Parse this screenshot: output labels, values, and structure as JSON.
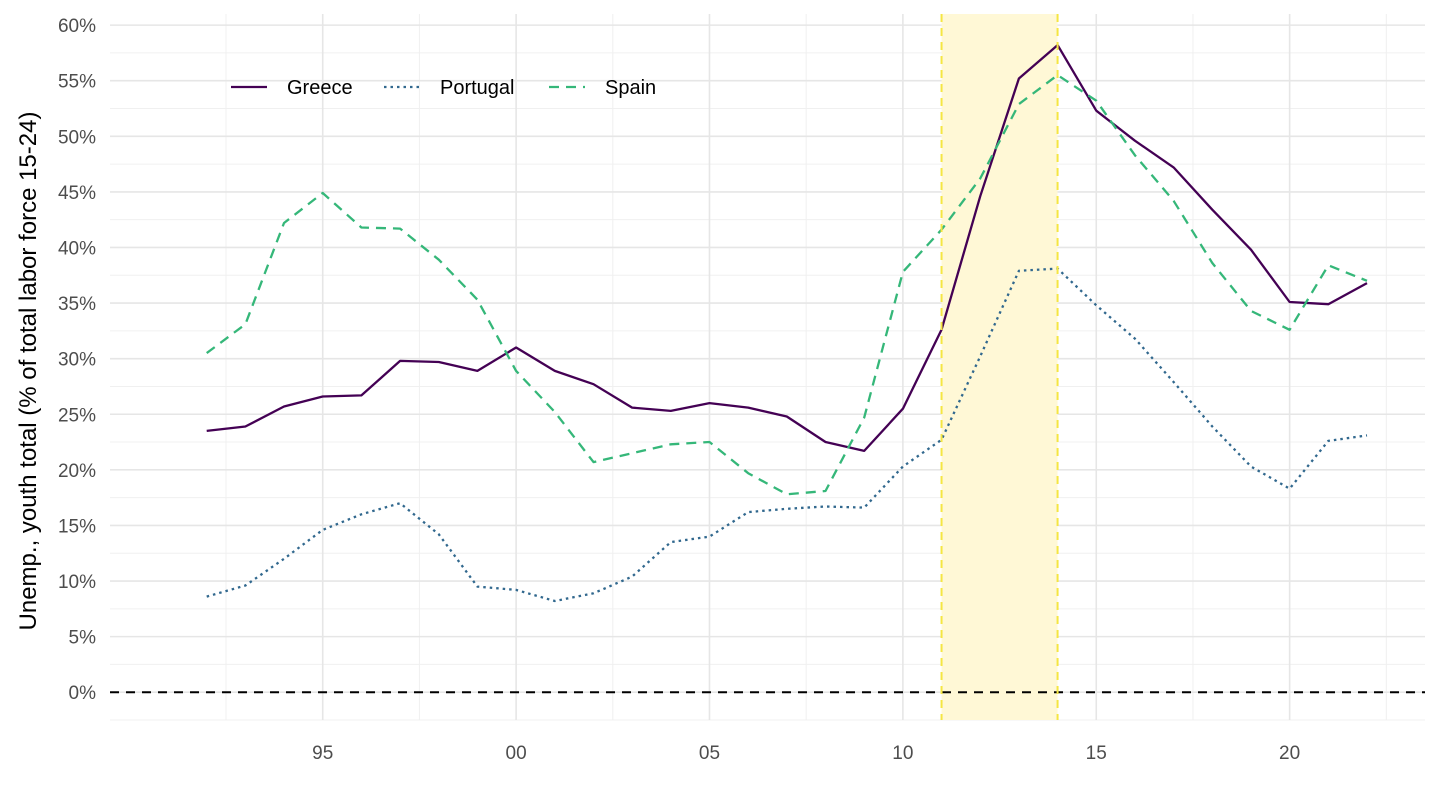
{
  "chart_data": {
    "type": "line",
    "title": "",
    "xlabel": "",
    "ylabel": "Unemp., youth total (% of total labor force 15-24)",
    "xlim": [
      1989.5,
      2023.5
    ],
    "ylim": [
      -2.5,
      61
    ],
    "x_ticks": [
      1995,
      2000,
      2005,
      2010,
      2015,
      2020
    ],
    "x_tick_labels": [
      "95",
      "00",
      "05",
      "10",
      "15",
      "20"
    ],
    "y_ticks": [
      0,
      5,
      10,
      15,
      20,
      25,
      30,
      35,
      40,
      45,
      50,
      55,
      60
    ],
    "y_tick_labels": [
      "0%",
      "5%",
      "10%",
      "15%",
      "20%",
      "25%",
      "30%",
      "35%",
      "40%",
      "45%",
      "50%",
      "55%",
      "60%"
    ],
    "grid": true,
    "legend_position": "top-left",
    "highlight_band": {
      "x_start": 2011,
      "x_end": 2014,
      "fill": "#fff8d6",
      "line_color": "#f5e642"
    },
    "zero_line_color": "#000000",
    "x": [
      1992,
      1993,
      1994,
      1995,
      1996,
      1997,
      1998,
      1999,
      2000,
      2001,
      2002,
      2003,
      2004,
      2005,
      2006,
      2007,
      2008,
      2009,
      2010,
      2011,
      2012,
      2013,
      2014,
      2015,
      2016,
      2017,
      2018,
      2019,
      2020,
      2021,
      2022
    ],
    "series": [
      {
        "name": "Greece",
        "color": "#440154",
        "dash": "solid",
        "values": [
          23.5,
          23.9,
          25.7,
          26.6,
          26.7,
          29.8,
          29.7,
          28.9,
          31.0,
          28.9,
          27.7,
          25.6,
          25.3,
          26.0,
          25.6,
          24.8,
          22.5,
          21.7,
          25.5,
          32.6,
          44.6,
          55.2,
          58.2,
          52.3,
          49.6,
          47.2,
          43.4,
          39.8,
          35.1,
          34.9,
          36.8
        ]
      },
      {
        "name": "Portugal",
        "color": "#31688e",
        "dash": "dotted",
        "values": [
          8.6,
          9.6,
          12.0,
          14.6,
          16.0,
          17.0,
          14.2,
          9.5,
          9.2,
          8.2,
          8.9,
          10.4,
          13.5,
          14.0,
          16.2,
          16.5,
          16.7,
          16.6,
          20.3,
          22.7,
          30.2,
          37.9,
          38.1,
          34.8,
          31.8,
          27.9,
          23.9,
          20.3,
          18.3,
          22.6,
          23.1
        ]
      },
      {
        "name": "Spain",
        "color": "#35b779",
        "dash": "dashed",
        "values": [
          30.5,
          33.1,
          42.2,
          44.9,
          41.8,
          41.7,
          38.9,
          35.3,
          28.9,
          25.2,
          20.7,
          21.5,
          22.3,
          22.5,
          19.7,
          17.8,
          18.1,
          24.7,
          37.8,
          41.6,
          46.2,
          52.9,
          55.5,
          53.2,
          48.3,
          44.2,
          38.6,
          34.3,
          32.6,
          38.4,
          37.0
        ]
      }
    ]
  }
}
